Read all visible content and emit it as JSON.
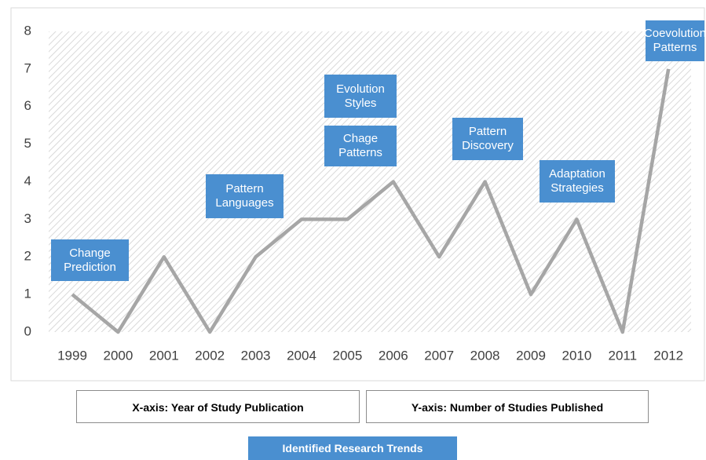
{
  "chart_data": {
    "type": "line",
    "categories": [
      "1999",
      "2000",
      "2001",
      "2002",
      "2003",
      "2004",
      "2005",
      "2006",
      "2007",
      "2008",
      "2009",
      "2010",
      "2011",
      "2012"
    ],
    "values": [
      1,
      0,
      2,
      0,
      2,
      3,
      3,
      4,
      2,
      4,
      1,
      3,
      0,
      7
    ],
    "color": "#a6a6a6",
    "ylim": [
      0,
      8
    ],
    "yticks": [
      0,
      1,
      2,
      3,
      4,
      5,
      6,
      7,
      8
    ],
    "annotations": [
      "Change Prediction",
      "Pattern Languages",
      "Evolution Styles",
      "Chage Patterns",
      "Pattern Discovery",
      "Adaptation Strategies",
      "Coevolution Patterns"
    ],
    "x_axis_label": "X-axis: Year of Study Publication",
    "y_axis_label": "Y-axis: Number of Studies Published",
    "legend_title": "Identified Research Trends"
  }
}
